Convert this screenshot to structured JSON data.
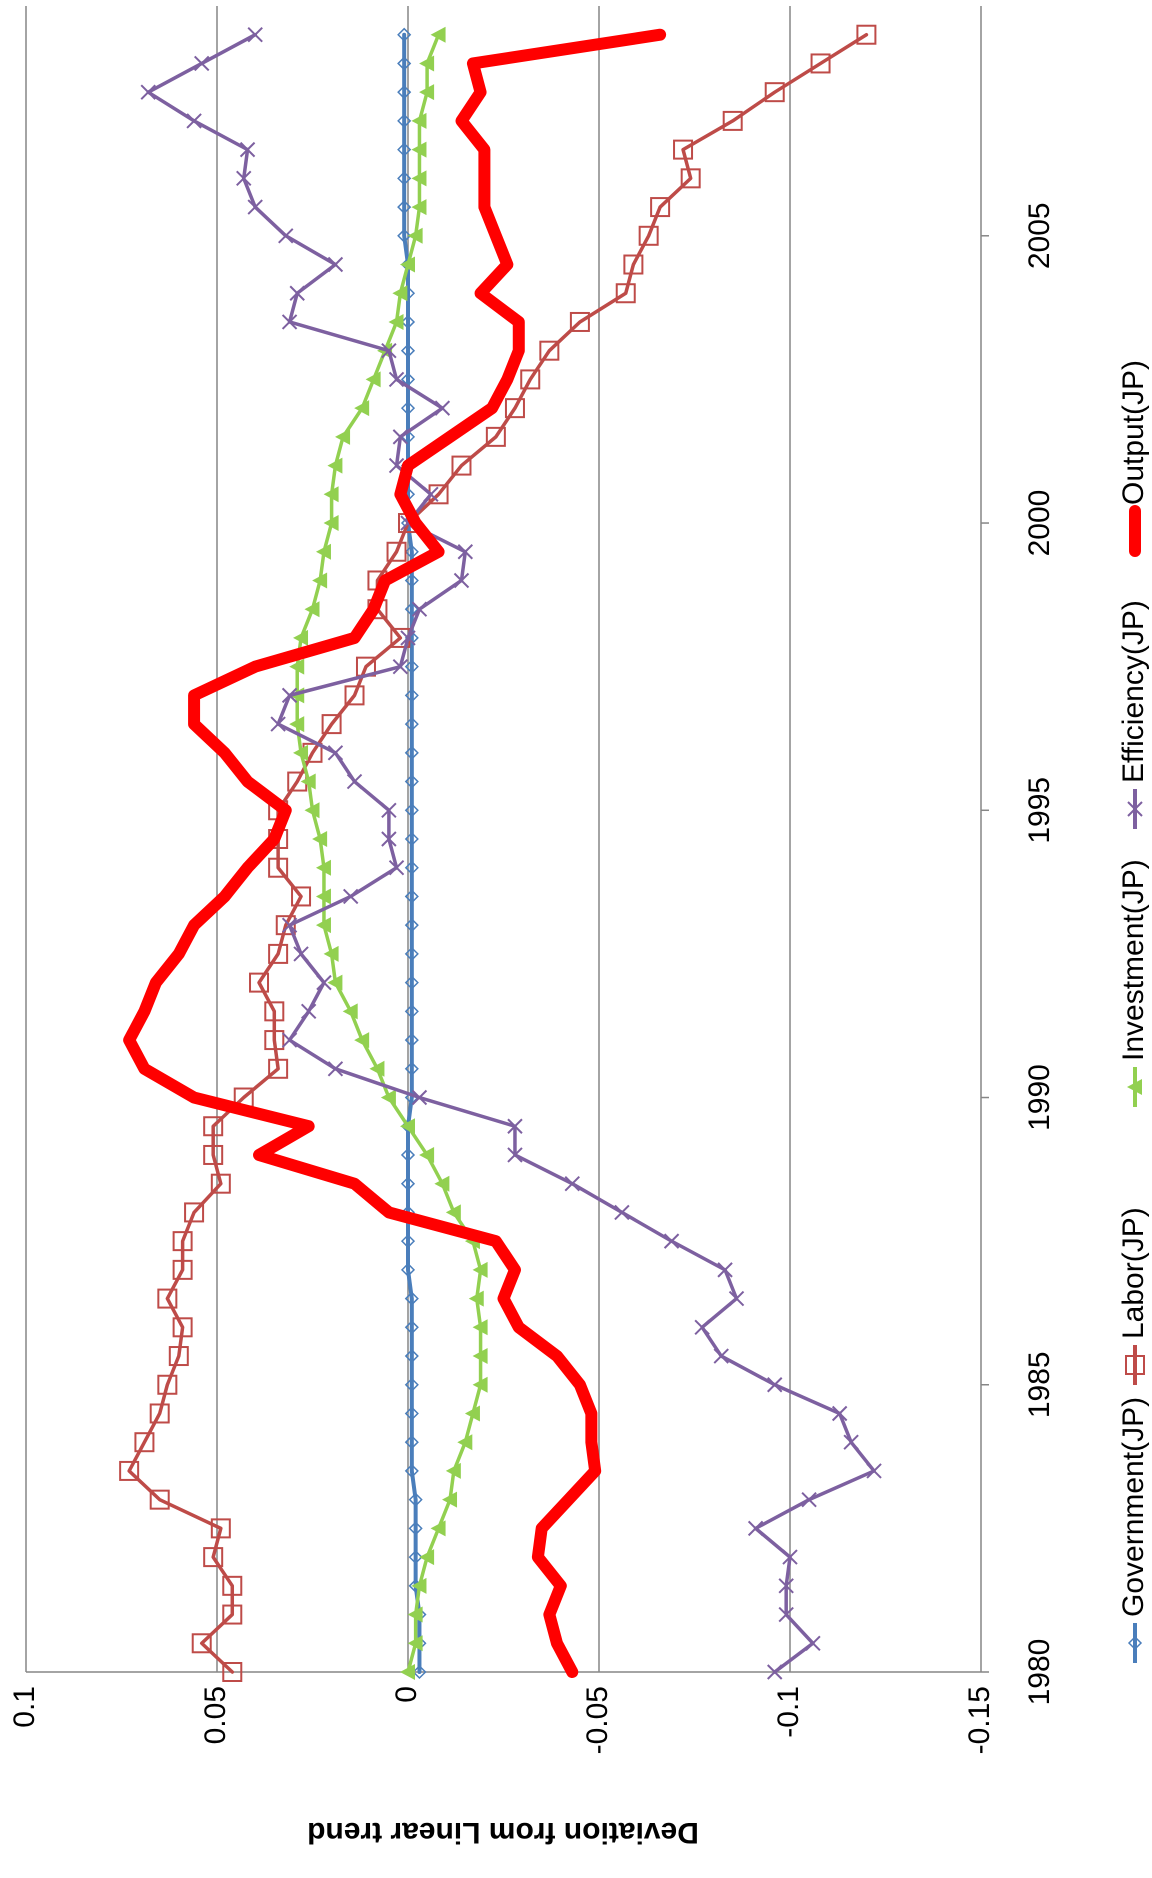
{
  "chart_data": {
    "type": "line",
    "y_label": "Deviation from Linear trend",
    "x": [
      1980,
      1980.5,
      1981,
      1981.5,
      1982,
      1982.5,
      1983,
      1983.5,
      1984,
      1984.5,
      1985,
      1985.5,
      1986,
      1986.5,
      1987,
      1987.5,
      1988,
      1988.5,
      1989,
      1989.5,
      1990,
      1990.5,
      1991,
      1991.5,
      1992,
      1992.5,
      1993,
      1993.5,
      1994,
      1994.5,
      1995,
      1995.5,
      1996,
      1996.5,
      1997,
      1997.5,
      1998,
      1998.5,
      1999,
      1999.5,
      2000,
      2000.5,
      2001,
      2001.5,
      2002,
      2002.5,
      2003,
      2003.5,
      2004,
      2004.5,
      2005,
      2005.5,
      2006,
      2006.5,
      2007,
      2007.5,
      2008,
      2008.5
    ],
    "xlim": [
      1980,
      2009
    ],
    "xticks": [
      1980,
      1985,
      1990,
      1995,
      2000,
      2005
    ],
    "ylim": [
      -0.15,
      0.1
    ],
    "yticks": [
      0.1,
      0.05,
      0,
      -0.05,
      -0.1,
      -0.15
    ],
    "grid": true,
    "legend": "bottom",
    "series": [
      {
        "name": "Government(JP)",
        "color": "#4a7ebb",
        "marker": "diamond",
        "values": [
          -0.003,
          -0.003,
          -0.003,
          -0.002,
          -0.002,
          -0.002,
          -0.002,
          -0.001,
          -0.001,
          -0.001,
          -0.001,
          -0.001,
          -0.001,
          -0.001,
          0.0,
          0.0,
          0.0,
          0.0,
          0.0,
          0.0,
          -0.001,
          -0.001,
          -0.001,
          -0.001,
          -0.001,
          -0.001,
          -0.001,
          -0.001,
          -0.001,
          -0.001,
          -0.001,
          -0.001,
          -0.001,
          -0.001,
          -0.001,
          -0.001,
          -0.001,
          -0.001,
          -0.001,
          -0.001,
          0.0,
          0.0,
          0.0,
          0.0,
          0.0,
          0.0,
          0.0,
          0.0,
          0.0,
          0.0,
          0.001,
          0.001,
          0.001,
          0.001,
          0.001,
          0.001,
          0.001,
          0.001
        ]
      },
      {
        "name": "Labor(JP)",
        "color": "#be4b48",
        "marker": "square",
        "values": [
          0.046,
          0.054,
          0.046,
          0.046,
          0.051,
          0.049,
          0.065,
          0.073,
          0.069,
          0.065,
          0.063,
          0.06,
          0.059,
          0.063,
          0.059,
          0.059,
          0.056,
          0.049,
          0.051,
          0.051,
          0.043,
          0.034,
          0.035,
          0.035,
          0.039,
          0.034,
          0.032,
          0.028,
          0.034,
          0.034,
          0.034,
          0.029,
          0.025,
          0.02,
          0.014,
          0.011,
          0.002,
          0.008,
          0.008,
          0.003,
          0.0,
          -0.008,
          -0.014,
          -0.023,
          -0.028,
          -0.032,
          -0.037,
          -0.045,
          -0.057,
          -0.059,
          -0.063,
          -0.066,
          -0.074,
          -0.072,
          -0.085,
          -0.096,
          -0.108,
          -0.12
        ]
      },
      {
        "name": "Investment(JP)",
        "color": "#92d050",
        "marker": "triangle",
        "values": [
          0.0,
          -0.002,
          -0.002,
          -0.003,
          -0.005,
          -0.008,
          -0.011,
          -0.012,
          -0.015,
          -0.017,
          -0.019,
          -0.019,
          -0.019,
          -0.018,
          -0.019,
          -0.017,
          -0.012,
          -0.009,
          -0.005,
          0.0,
          0.005,
          0.008,
          0.012,
          0.015,
          0.019,
          0.02,
          0.022,
          0.022,
          0.022,
          0.023,
          0.025,
          0.026,
          0.028,
          0.029,
          0.029,
          0.029,
          0.028,
          0.025,
          0.023,
          0.022,
          0.02,
          0.02,
          0.019,
          0.017,
          0.012,
          0.009,
          0.006,
          0.003,
          0.002,
          0.0,
          -0.002,
          -0.003,
          -0.003,
          -0.003,
          -0.003,
          -0.005,
          -0.005,
          -0.008
        ]
      },
      {
        "name": "Efficiency(JP)",
        "color": "#7d60a0",
        "marker": "x",
        "values": [
          -0.096,
          -0.106,
          -0.099,
          -0.099,
          -0.1,
          -0.091,
          -0.105,
          -0.122,
          -0.116,
          -0.113,
          -0.096,
          -0.082,
          -0.077,
          -0.086,
          -0.083,
          -0.069,
          -0.056,
          -0.043,
          -0.028,
          -0.028,
          -0.003,
          0.019,
          0.031,
          0.026,
          0.022,
          0.028,
          0.031,
          0.015,
          0.003,
          0.005,
          0.005,
          0.014,
          0.019,
          0.034,
          0.031,
          0.002,
          0.0,
          -0.003,
          -0.014,
          -0.015,
          0.0,
          -0.006,
          0.003,
          0.002,
          -0.009,
          0.003,
          0.005,
          0.031,
          0.029,
          0.019,
          0.032,
          0.04,
          0.043,
          0.042,
          0.056,
          0.068,
          0.054,
          0.04
        ]
      },
      {
        "name": "Output(JP)",
        "color": "#ff0000",
        "marker": "none",
        "values": [
          -0.043,
          -0.039,
          -0.037,
          -0.04,
          -0.034,
          -0.035,
          -0.042,
          -0.049,
          -0.048,
          -0.048,
          -0.045,
          -0.039,
          -0.029,
          -0.025,
          -0.028,
          -0.023,
          0.005,
          0.014,
          0.039,
          0.026,
          0.056,
          0.069,
          0.073,
          0.069,
          0.066,
          0.06,
          0.056,
          0.048,
          0.042,
          0.035,
          0.032,
          0.042,
          0.048,
          0.056,
          0.056,
          0.04,
          0.014,
          0.009,
          0.006,
          -0.008,
          -0.002,
          0.002,
          0.0,
          -0.011,
          -0.022,
          -0.026,
          -0.029,
          -0.029,
          -0.019,
          -0.026,
          -0.023,
          -0.02,
          -0.02,
          -0.02,
          -0.014,
          -0.019,
          -0.017,
          -0.066
        ]
      }
    ]
  }
}
